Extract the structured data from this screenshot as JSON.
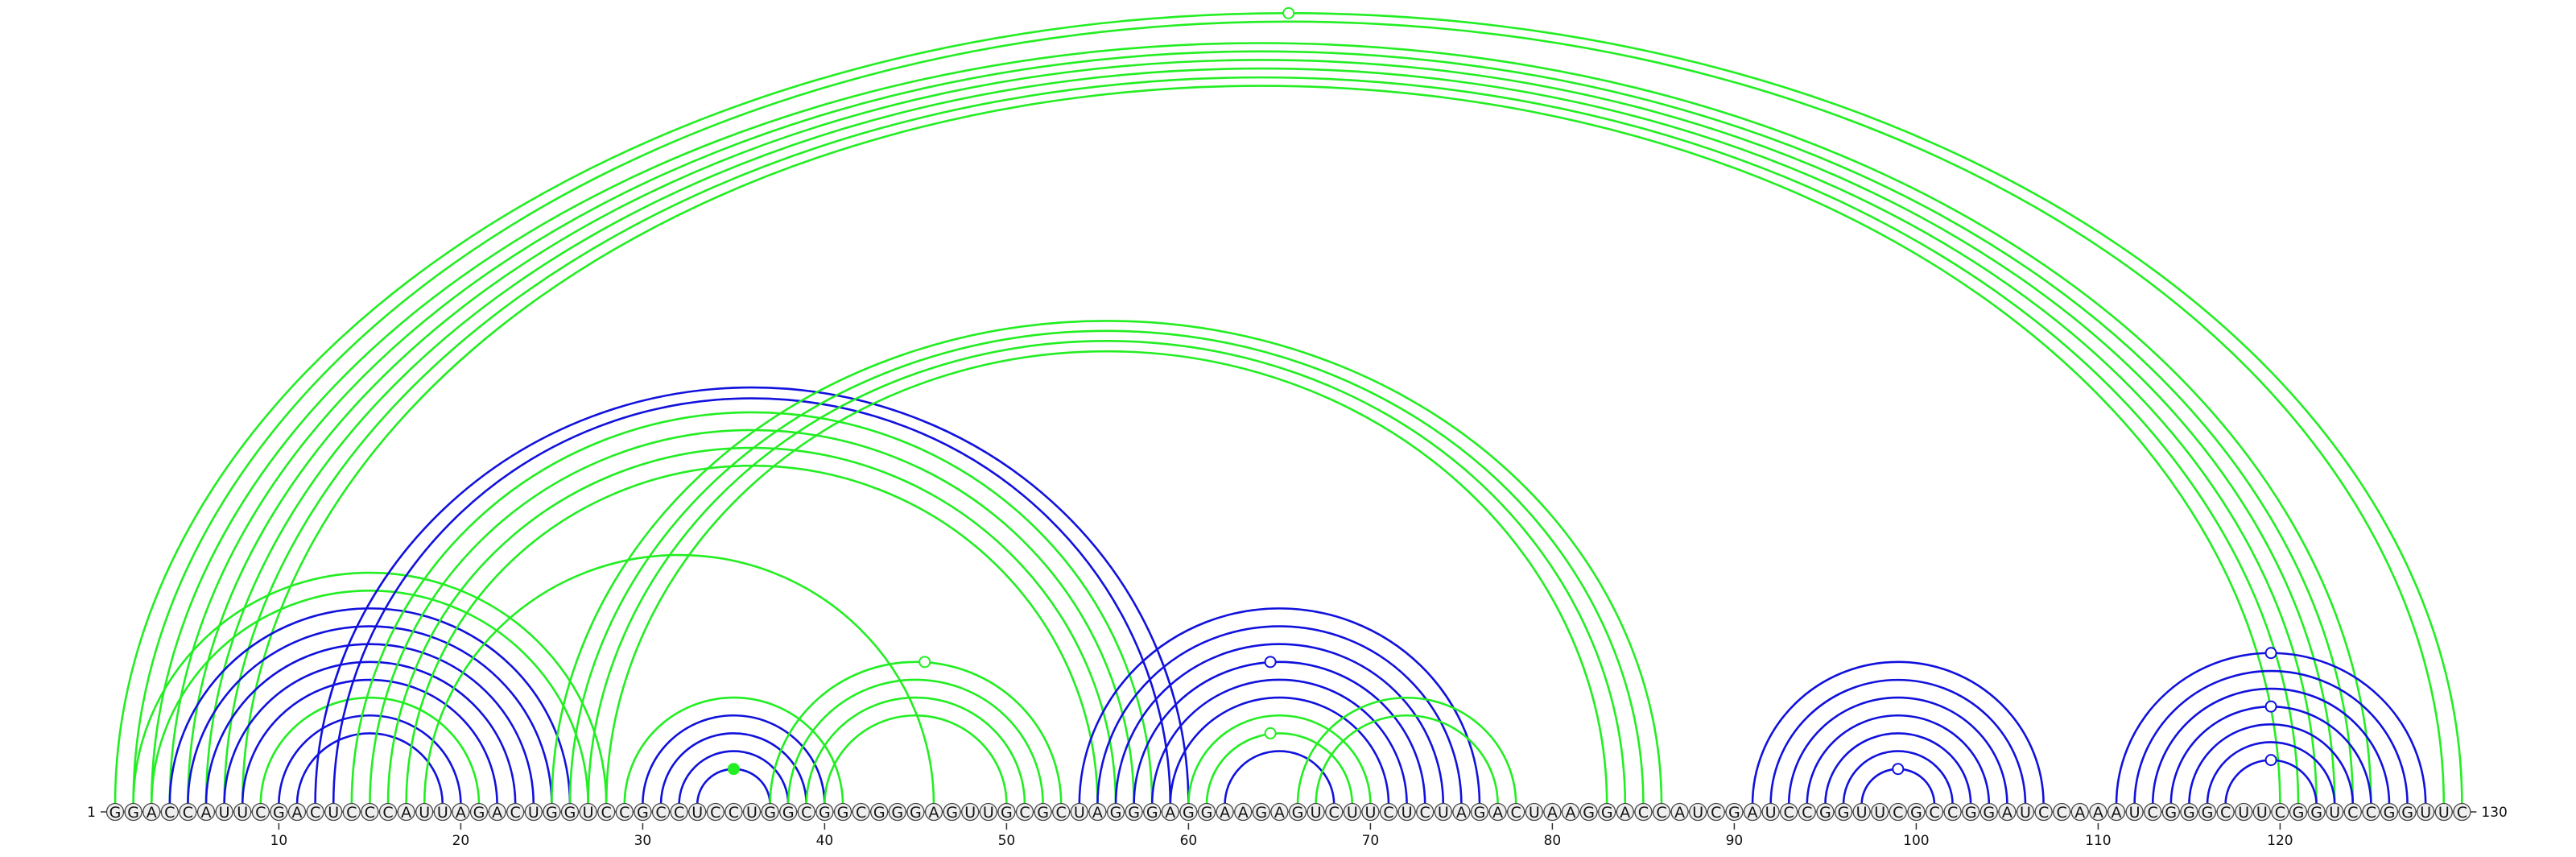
{
  "sequence": "GGACCAUUCGACUCCCAUUAGACUGGUCCGCCUCCUGGCGGCGGGAGUUGCGCUAGGGAGGAAGAGUCUUCUCUAGACUAAGGACCAUCGAUCCGGUUCGCCGGAUCCAAAUCGGGCUUCGGUCCGGUUC",
  "start_label": "1",
  "end_label": "130",
  "ticks": [
    10,
    20,
    30,
    40,
    50,
    60,
    70,
    80,
    90,
    100,
    110,
    120
  ],
  "colors": {
    "green": "#22ee22",
    "blue": "#1111dd",
    "circle_fill": "#eeeeee"
  },
  "arcs": [
    {
      "i": 1,
      "j": 130,
      "c": "green"
    },
    {
      "i": 2,
      "j": 129,
      "c": "green"
    },
    {
      "i": 3,
      "j": 125,
      "c": "green"
    },
    {
      "i": 4,
      "j": 124,
      "c": "green"
    },
    {
      "i": 5,
      "j": 123,
      "c": "green"
    },
    {
      "i": 6,
      "j": 122,
      "c": "green"
    },
    {
      "i": 7,
      "j": 121,
      "c": "green"
    },
    {
      "i": 8,
      "j": 120,
      "c": "green"
    },
    {
      "i": 2,
      "j": 28,
      "c": "green"
    },
    {
      "i": 3,
      "j": 27,
      "c": "green"
    },
    {
      "i": 4,
      "j": 26,
      "c": "blue"
    },
    {
      "i": 5,
      "j": 25,
      "c": "blue"
    },
    {
      "i": 6,
      "j": 24,
      "c": "blue"
    },
    {
      "i": 7,
      "j": 23,
      "c": "blue"
    },
    {
      "i": 8,
      "j": 22,
      "c": "blue"
    },
    {
      "i": 9,
      "j": 21,
      "c": "green"
    },
    {
      "i": 10,
      "j": 20,
      "c": "blue"
    },
    {
      "i": 11,
      "j": 19,
      "c": "blue"
    },
    {
      "i": 12,
      "j": 60,
      "c": "blue"
    },
    {
      "i": 13,
      "j": 59,
      "c": "blue"
    },
    {
      "i": 14,
      "j": 58,
      "c": "green"
    },
    {
      "i": 15,
      "j": 57,
      "c": "green"
    },
    {
      "i": 16,
      "j": 56,
      "c": "green"
    },
    {
      "i": 17,
      "j": 55,
      "c": "green"
    },
    {
      "i": 18,
      "j": 46,
      "c": "green"
    },
    {
      "i": 25,
      "j": 86,
      "c": "green"
    },
    {
      "i": 26,
      "j": 85,
      "c": "green"
    },
    {
      "i": 27,
      "j": 84,
      "c": "green"
    },
    {
      "i": 28,
      "j": 83,
      "c": "green"
    },
    {
      "i": 29,
      "j": 41,
      "c": "green"
    },
    {
      "i": 30,
      "j": 40,
      "c": "blue"
    },
    {
      "i": 31,
      "j": 39,
      "c": "blue"
    },
    {
      "i": 32,
      "j": 38,
      "c": "blue"
    },
    {
      "i": 33,
      "j": 37,
      "c": "blue"
    },
    {
      "i": 37,
      "j": 53,
      "c": "green"
    },
    {
      "i": 38,
      "j": 52,
      "c": "green"
    },
    {
      "i": 39,
      "j": 51,
      "c": "green"
    },
    {
      "i": 40,
      "j": 50,
      "c": "green"
    },
    {
      "i": 54,
      "j": 76,
      "c": "blue"
    },
    {
      "i": 55,
      "j": 75,
      "c": "blue"
    },
    {
      "i": 56,
      "j": 74,
      "c": "blue"
    },
    {
      "i": 57,
      "j": 73,
      "c": "blue"
    },
    {
      "i": 58,
      "j": 72,
      "c": "blue"
    },
    {
      "i": 59,
      "j": 71,
      "c": "blue"
    },
    {
      "i": 60,
      "j": 70,
      "c": "green"
    },
    {
      "i": 61,
      "j": 69,
      "c": "green"
    },
    {
      "i": 62,
      "j": 68,
      "c": "blue"
    },
    {
      "i": 66,
      "j": 78,
      "c": "green"
    },
    {
      "i": 67,
      "j": 77,
      "c": "green"
    },
    {
      "i": 91,
      "j": 107,
      "c": "blue"
    },
    {
      "i": 92,
      "j": 106,
      "c": "blue"
    },
    {
      "i": 93,
      "j": 105,
      "c": "blue"
    },
    {
      "i": 94,
      "j": 104,
      "c": "blue"
    },
    {
      "i": 95,
      "j": 103,
      "c": "blue"
    },
    {
      "i": 96,
      "j": 102,
      "c": "blue"
    },
    {
      "i": 97,
      "j": 101,
      "c": "blue"
    },
    {
      "i": 111,
      "j": 128,
      "c": "blue"
    },
    {
      "i": 112,
      "j": 127,
      "c": "blue"
    },
    {
      "i": 113,
      "j": 126,
      "c": "blue"
    },
    {
      "i": 114,
      "j": 125,
      "c": "blue"
    },
    {
      "i": 115,
      "j": 124,
      "c": "blue"
    },
    {
      "i": 116,
      "j": 123,
      "c": "blue"
    },
    {
      "i": 117,
      "j": 122,
      "c": "blue"
    }
  ],
  "markers": [
    {
      "pos": 65.5,
      "arc_of": [
        1,
        130
      ],
      "c": "green",
      "filled": false
    },
    {
      "pos": 45.5,
      "arc_of": [
        37,
        53
      ],
      "c": "green",
      "filled": false
    },
    {
      "pos": 35,
      "arc_of": [
        33,
        37
      ],
      "c": "green",
      "filled": true
    },
    {
      "pos": 64.5,
      "arc_of": [
        57,
        73
      ],
      "c": "blue",
      "filled": false
    },
    {
      "pos": 64.5,
      "arc_of": [
        61,
        69
      ],
      "c": "green",
      "filled": false
    },
    {
      "pos": 99,
      "arc_of": [
        97,
        101
      ],
      "c": "blue",
      "filled": false
    },
    {
      "pos": 119.5,
      "arc_of": [
        111,
        128
      ],
      "c": "blue",
      "filled": false
    },
    {
      "pos": 119.5,
      "arc_of": [
        114,
        125
      ],
      "c": "blue",
      "filled": false
    },
    {
      "pos": 119.5,
      "arc_of": [
        117,
        122
      ],
      "c": "blue",
      "filled": false
    }
  ]
}
